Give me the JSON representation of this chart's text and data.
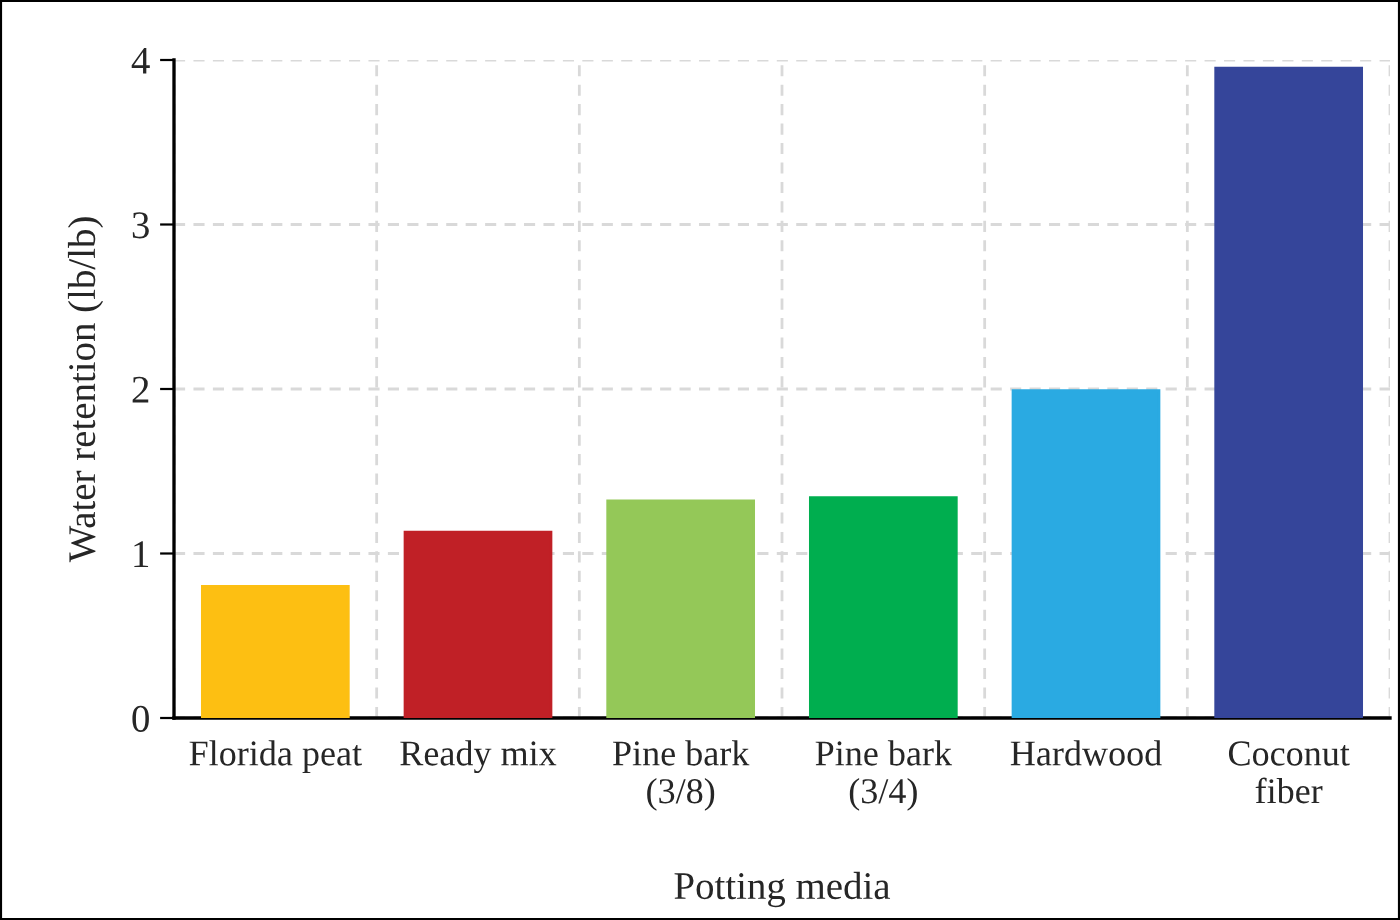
{
  "chart_data": {
    "type": "bar",
    "xlabel": "Potting media",
    "ylabel": "Water retention (lb/lb)",
    "categories": [
      "Florida peat",
      "Ready mix",
      "Pine bark\n(3/8)",
      "Pine bark\n(3/4)",
      "Hardwood",
      "Coconut\nfiber"
    ],
    "values": [
      0.8,
      1.13,
      1.32,
      1.34,
      1.99,
      3.95
    ],
    "colors": [
      "#fdbf12",
      "#c02026",
      "#94c858",
      "#00ae4f",
      "#2aaae2",
      "#35459a"
    ],
    "ylim": [
      0,
      4
    ],
    "yticks": [
      0,
      1,
      2,
      3,
      4
    ],
    "grid": true,
    "legend": false
  }
}
